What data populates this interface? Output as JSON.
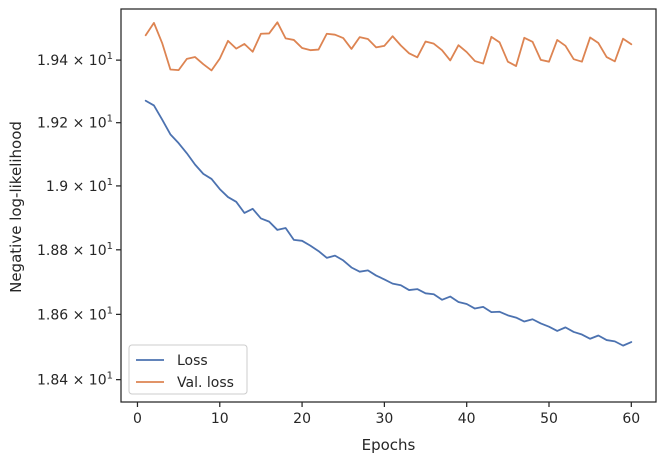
{
  "chart_data": {
    "type": "line",
    "title": "",
    "xlabel": "Epochs",
    "ylabel": "Negative log-likelihood",
    "xlim": [
      -2,
      63
    ],
    "ylim": [
      18.332,
      19.565
    ],
    "y_scale": "log",
    "x_ticks": [
      0,
      10,
      20,
      30,
      40,
      50,
      60
    ],
    "y_ticks": [
      {
        "value": 18.4,
        "mantissa": "1.84",
        "times": "×",
        "base": "10",
        "exp": "1"
      },
      {
        "value": 18.6,
        "mantissa": "1.86",
        "times": "×",
        "base": "10",
        "exp": "1"
      },
      {
        "value": 18.8,
        "mantissa": "1.88",
        "times": "×",
        "base": "10",
        "exp": "1"
      },
      {
        "value": 19.0,
        "mantissa": "1.9",
        "times": "×",
        "base": "10",
        "exp": "1"
      },
      {
        "value": 19.2,
        "mantissa": "1.92",
        "times": "×",
        "base": "10",
        "exp": "1"
      },
      {
        "value": 19.4,
        "mantissa": "1.94",
        "times": "×",
        "base": "10",
        "exp": "1"
      }
    ],
    "legend_position": "lower-left",
    "x": [
      1,
      2,
      3,
      4,
      5,
      6,
      7,
      8,
      9,
      10,
      11,
      12,
      13,
      14,
      15,
      16,
      17,
      18,
      19,
      20,
      21,
      22,
      23,
      24,
      25,
      26,
      27,
      28,
      29,
      30,
      31,
      32,
      33,
      34,
      35,
      36,
      37,
      38,
      39,
      40,
      41,
      42,
      43,
      44,
      45,
      46,
      47,
      48,
      49,
      50,
      51,
      52,
      53,
      54,
      55,
      56,
      57,
      58,
      59,
      60
    ],
    "series": [
      {
        "name": "Loss",
        "color": "#4c72b0",
        "values": [
          19.27,
          19.255,
          19.21,
          19.163,
          19.135,
          19.103,
          19.067,
          19.038,
          19.022,
          18.99,
          18.965,
          18.95,
          18.915,
          18.928,
          18.898,
          18.888,
          18.862,
          18.868,
          18.831,
          18.828,
          18.813,
          18.796,
          18.775,
          18.782,
          18.767,
          18.745,
          18.732,
          18.736,
          18.72,
          18.708,
          18.695,
          18.69,
          18.675,
          18.678,
          18.665,
          18.662,
          18.645,
          18.655,
          18.638,
          18.632,
          18.618,
          18.623,
          18.607,
          18.608,
          18.597,
          18.59,
          18.578,
          18.585,
          18.572,
          18.562,
          18.549,
          18.56,
          18.546,
          18.538,
          18.525,
          18.535,
          18.521,
          18.517,
          18.504,
          18.515
        ]
      },
      {
        "name": "Val. loss",
        "color": "#dd8452",
        "values": [
          19.48,
          19.52,
          19.455,
          19.37,
          19.368,
          19.404,
          19.41,
          19.387,
          19.367,
          19.405,
          19.462,
          19.437,
          19.452,
          19.427,
          19.485,
          19.486,
          19.522,
          19.47,
          19.465,
          19.439,
          19.432,
          19.434,
          19.485,
          19.482,
          19.471,
          19.436,
          19.474,
          19.468,
          19.441,
          19.446,
          19.477,
          19.447,
          19.422,
          19.409,
          19.46,
          19.453,
          19.432,
          19.399,
          19.448,
          19.426,
          19.397,
          19.389,
          19.475,
          19.457,
          19.395,
          19.381,
          19.472,
          19.459,
          19.401,
          19.395,
          19.465,
          19.446,
          19.403,
          19.395,
          19.473,
          19.455,
          19.41,
          19.396,
          19.469,
          19.451
        ]
      }
    ]
  }
}
